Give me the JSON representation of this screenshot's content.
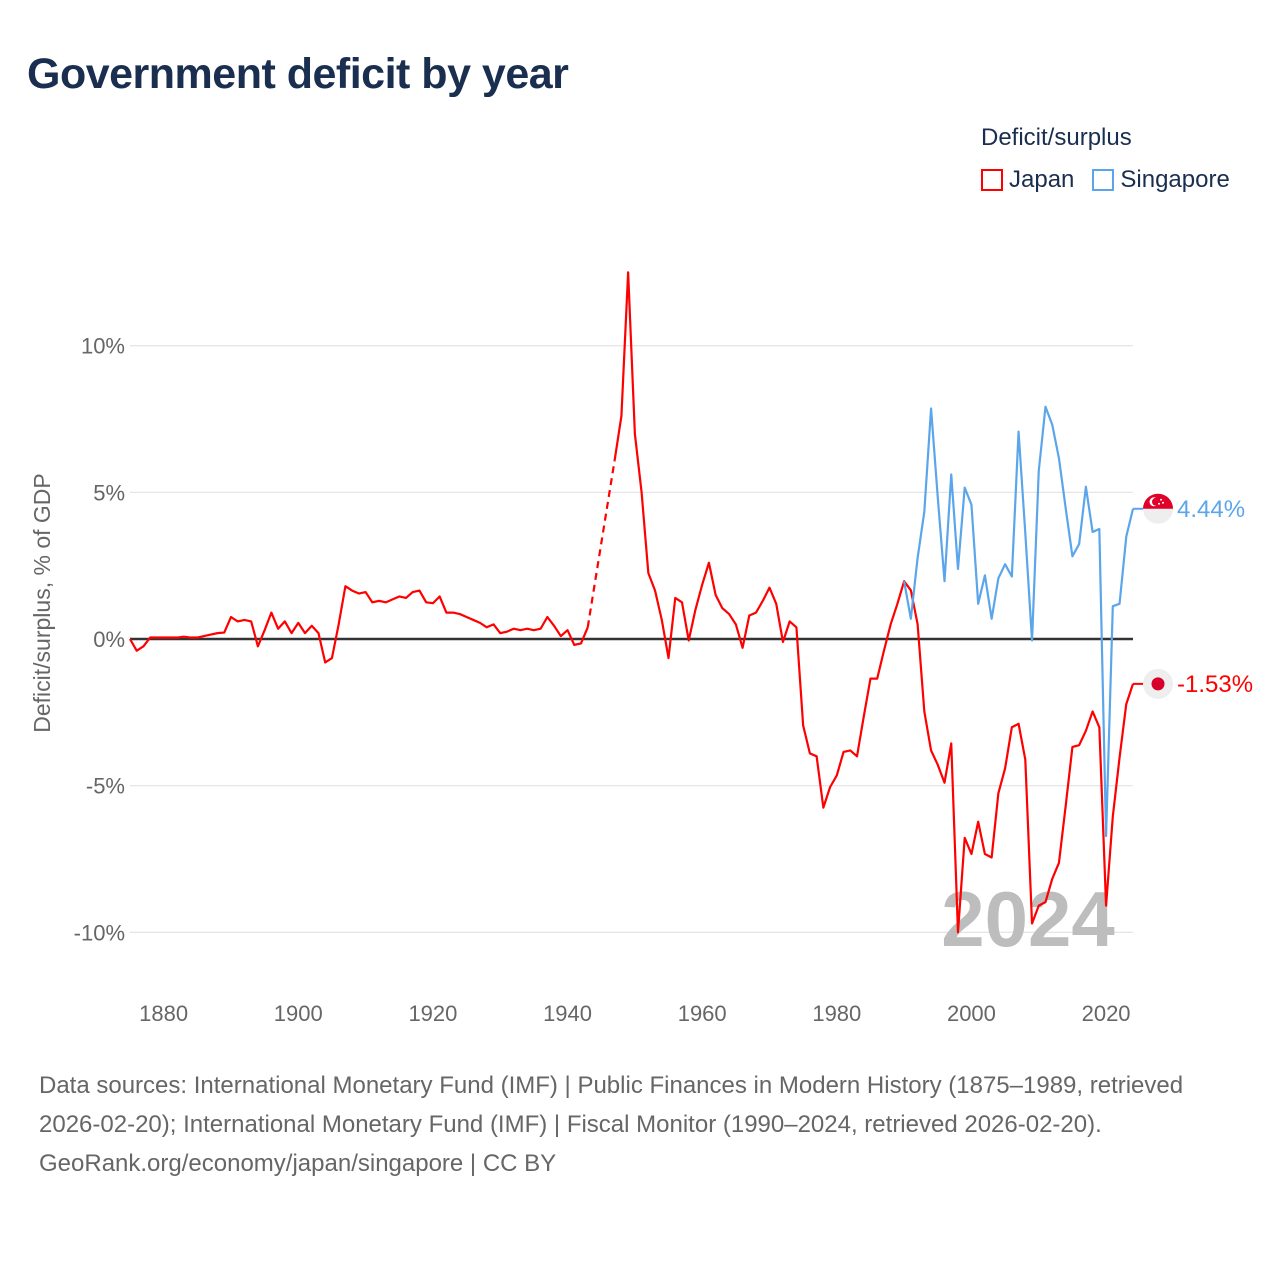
{
  "title": "Government deficit by year",
  "legend": {
    "title": "Deficit/surplus",
    "items": [
      {
        "label": "Japan",
        "color": "#ff0000"
      },
      {
        "label": "Singapore",
        "color": "#5ba6ea"
      }
    ]
  },
  "chart_data": {
    "type": "line",
    "title": "Government deficit by year",
    "xlabel": "",
    "ylabel": "Deficit/surplus, % of GDP",
    "xlim": [
      1875,
      2024
    ],
    "ylim": [
      -11.5,
      13
    ],
    "x_ticks": [
      1880,
      1900,
      1920,
      1940,
      1960,
      1980,
      2000,
      2020
    ],
    "y_ticks": [
      10,
      5,
      0,
      -5,
      -10
    ],
    "y_tick_labels": [
      "10%",
      "5%",
      "0%",
      "-5%",
      "-10%"
    ],
    "grid": true,
    "legend_position": "top-right",
    "current_year_label": "2024",
    "series": [
      {
        "name": "Japan",
        "color": "#ff0000",
        "end_label": "-1.53%",
        "interpolated_range": [
          1943,
          1947
        ],
        "points": [
          [
            1875,
            0
          ],
          [
            1876,
            -0.4
          ],
          [
            1877,
            -0.25
          ],
          [
            1878,
            0.05
          ],
          [
            1879,
            0.05
          ],
          [
            1880,
            0.05
          ],
          [
            1881,
            0.05
          ],
          [
            1882,
            0.05
          ],
          [
            1883,
            0.08
          ],
          [
            1884,
            0.05
          ],
          [
            1885,
            0.05
          ],
          [
            1886,
            0.1
          ],
          [
            1887,
            0.15
          ],
          [
            1888,
            0.2
          ],
          [
            1889,
            0.22
          ],
          [
            1890,
            0.75
          ],
          [
            1891,
            0.6
          ],
          [
            1892,
            0.65
          ],
          [
            1893,
            0.6
          ],
          [
            1894,
            -0.25
          ],
          [
            1895,
            0.3
          ],
          [
            1896,
            0.9
          ],
          [
            1897,
            0.35
          ],
          [
            1898,
            0.6
          ],
          [
            1899,
            0.2
          ],
          [
            1900,
            0.55
          ],
          [
            1901,
            0.2
          ],
          [
            1902,
            0.45
          ],
          [
            1903,
            0.2
          ],
          [
            1904,
            -0.8
          ],
          [
            1905,
            -0.65
          ],
          [
            1906,
            0.5
          ],
          [
            1907,
            1.8
          ],
          [
            1908,
            1.65
          ],
          [
            1909,
            1.55
          ],
          [
            1910,
            1.6
          ],
          [
            1911,
            1.25
          ],
          [
            1912,
            1.3
          ],
          [
            1913,
            1.25
          ],
          [
            1914,
            1.35
          ],
          [
            1915,
            1.45
          ],
          [
            1916,
            1.4
          ],
          [
            1917,
            1.6
          ],
          [
            1918,
            1.65
          ],
          [
            1919,
            1.25
          ],
          [
            1920,
            1.22
          ],
          [
            1921,
            1.45
          ],
          [
            1922,
            0.9
          ],
          [
            1923,
            0.9
          ],
          [
            1924,
            0.85
          ],
          [
            1925,
            0.75
          ],
          [
            1926,
            0.65
          ],
          [
            1927,
            0.55
          ],
          [
            1928,
            0.4
          ],
          [
            1929,
            0.5
          ],
          [
            1930,
            0.2
          ],
          [
            1931,
            0.25
          ],
          [
            1932,
            0.35
          ],
          [
            1933,
            0.3
          ],
          [
            1934,
            0.35
          ],
          [
            1935,
            0.3
          ],
          [
            1936,
            0.35
          ],
          [
            1937,
            0.75
          ],
          [
            1938,
            0.45
          ],
          [
            1939,
            0.1
          ],
          [
            1940,
            0.3
          ],
          [
            1941,
            -0.2
          ],
          [
            1942,
            -0.15
          ],
          [
            1943,
            0.4
          ],
          [
            1947,
            6.1
          ],
          [
            1948,
            7.6
          ],
          [
            1949,
            12.5
          ],
          [
            1950,
            7.0
          ],
          [
            1951,
            5.0
          ],
          [
            1952,
            2.25
          ],
          [
            1953,
            1.65
          ],
          [
            1954,
            0.65
          ],
          [
            1955,
            -0.65
          ],
          [
            1956,
            1.4
          ],
          [
            1957,
            1.25
          ],
          [
            1958,
            -0.05
          ],
          [
            1959,
            1.0
          ],
          [
            1960,
            1.85
          ],
          [
            1961,
            2.6
          ],
          [
            1962,
            1.5
          ],
          [
            1963,
            1.05
          ],
          [
            1964,
            0.85
          ],
          [
            1965,
            0.5
          ],
          [
            1966,
            -0.3
          ],
          [
            1967,
            0.8
          ],
          [
            1968,
            0.9
          ],
          [
            1969,
            1.3
          ],
          [
            1970,
            1.75
          ],
          [
            1971,
            1.2
          ],
          [
            1972,
            -0.1
          ],
          [
            1973,
            0.6
          ],
          [
            1974,
            0.4
          ],
          [
            1975,
            -2.95
          ],
          [
            1976,
            -3.9
          ],
          [
            1977,
            -4.0
          ],
          [
            1978,
            -5.75
          ],
          [
            1979,
            -5.05
          ],
          [
            1980,
            -4.65
          ],
          [
            1981,
            -3.85
          ],
          [
            1982,
            -3.8
          ],
          [
            1983,
            -4.0
          ],
          [
            1984,
            -2.65
          ],
          [
            1985,
            -1.35
          ],
          [
            1986,
            -1.35
          ],
          [
            1987,
            -0.4
          ],
          [
            1988,
            0.5
          ],
          [
            1989,
            1.2
          ],
          [
            1990,
            1.97
          ],
          [
            1991,
            1.66
          ],
          [
            1992,
            0.51
          ],
          [
            1993,
            -2.47
          ],
          [
            1994,
            -3.8
          ],
          [
            1995,
            -4.29
          ],
          [
            1996,
            -4.9
          ],
          [
            1997,
            -3.56
          ],
          [
            1998,
            -10.0
          ],
          [
            1999,
            -6.78
          ],
          [
            2000,
            -7.33
          ],
          [
            2001,
            -6.23
          ],
          [
            2002,
            -7.33
          ],
          [
            2003,
            -7.45
          ],
          [
            2004,
            -5.26
          ],
          [
            2005,
            -4.41
          ],
          [
            2006,
            -3.01
          ],
          [
            2007,
            -2.89
          ],
          [
            2008,
            -4.11
          ],
          [
            2009,
            -9.7
          ],
          [
            2010,
            -9.09
          ],
          [
            2011,
            -8.97
          ],
          [
            2012,
            -8.18
          ],
          [
            2013,
            -7.63
          ],
          [
            2014,
            -5.69
          ],
          [
            2015,
            -3.68
          ],
          [
            2016,
            -3.62
          ],
          [
            2017,
            -3.13
          ],
          [
            2018,
            -2.47
          ],
          [
            2019,
            -3.01
          ],
          [
            2020,
            -9.09
          ],
          [
            2021,
            -6.05
          ],
          [
            2022,
            -4.05
          ],
          [
            2023,
            -2.22
          ],
          [
            2024,
            -1.53
          ]
        ]
      },
      {
        "name": "Singapore",
        "color": "#5ba6ea",
        "end_label": "4.44%",
        "points": [
          [
            1990,
            1.97
          ],
          [
            1991,
            0.69
          ],
          [
            1992,
            2.76
          ],
          [
            1993,
            4.34
          ],
          [
            1994,
            7.86
          ],
          [
            1995,
            4.82
          ],
          [
            1996,
            1.97
          ],
          [
            1997,
            5.61
          ],
          [
            1998,
            2.39
          ],
          [
            1999,
            5.16
          ],
          [
            2000,
            4.58
          ],
          [
            2001,
            1.2
          ],
          [
            2002,
            2.17
          ],
          [
            2003,
            0.69
          ],
          [
            2004,
            2.07
          ],
          [
            2005,
            2.55
          ],
          [
            2006,
            2.13
          ],
          [
            2007,
            7.07
          ],
          [
            2008,
            3.61
          ],
          [
            2009,
            -0.05
          ],
          [
            2010,
            5.73
          ],
          [
            2011,
            7.92
          ],
          [
            2012,
            7.31
          ],
          [
            2013,
            6.16
          ],
          [
            2014,
            4.46
          ],
          [
            2015,
            2.82
          ],
          [
            2016,
            3.24
          ],
          [
            2017,
            5.19
          ],
          [
            2018,
            3.65
          ],
          [
            2019,
            3.75
          ],
          [
            2020,
            -6.72
          ],
          [
            2021,
            1.12
          ],
          [
            2022,
            1.2
          ],
          [
            2023,
            3.49
          ],
          [
            2024,
            4.44
          ]
        ]
      }
    ]
  },
  "sources": {
    "text": "Data sources: International Monetary Fund (IMF) | Public Finances in Modern History (1875–1989, retrieved 2026-02-20); International Monetary Fund (IMF) | Fiscal Monitor (1990–2024, retrieved 2026-02-20).",
    "credit": "GeoRank.org/economy/japan/singapore | CC BY"
  }
}
